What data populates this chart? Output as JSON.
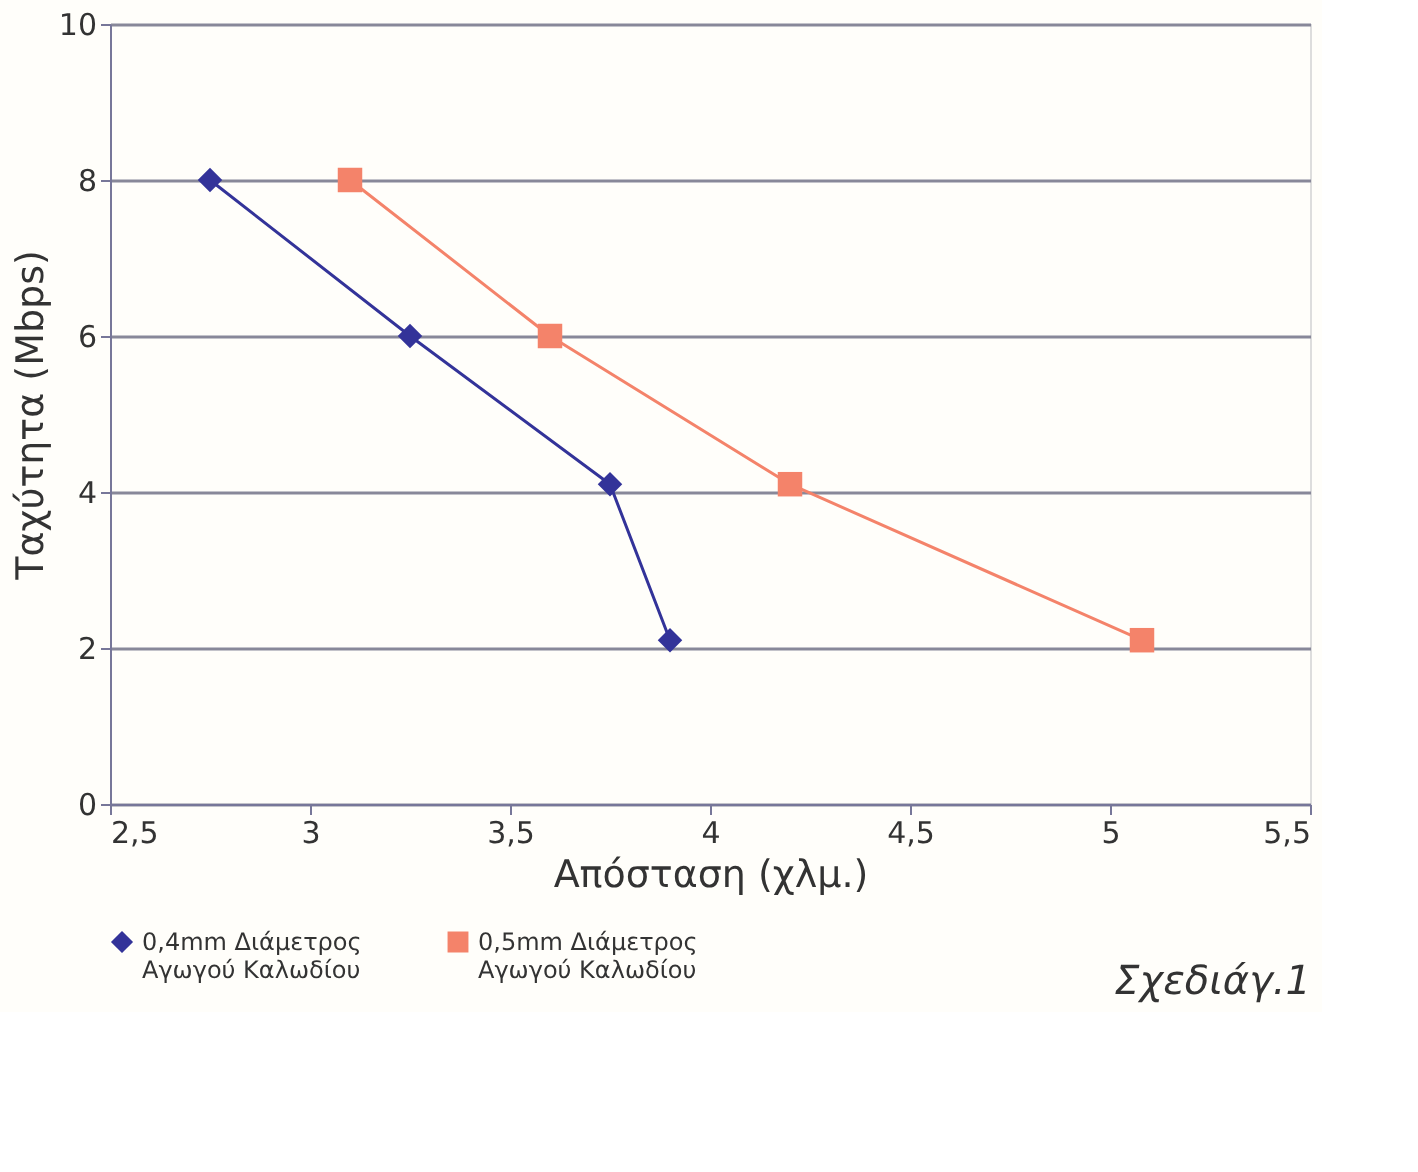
{
  "chart_data": {
    "type": "line",
    "xlabel": "Απόσταση (χλμ.)",
    "ylabel": "Ταχύτητα (Mbps)",
    "xlim": [
      2.5,
      5.5
    ],
    "xticks": [
      {
        "value": 2.5,
        "label": "2,5"
      },
      3,
      {
        "value": 3.5,
        "label": "3,5"
      },
      4,
      {
        "value": 4.5,
        "label": "4,5"
      },
      5,
      {
        "value": 5.5,
        "label": "5,5"
      }
    ],
    "ylim": [
      0,
      10
    ],
    "yticks": [
      0,
      2,
      4,
      6,
      8,
      10
    ],
    "grid": "y",
    "legend": "bottom",
    "series": [
      {
        "name": "0,4mm Διάμετρος\nΑγωγού Καλωδίου",
        "color": "#333399",
        "marker": "diamond",
        "x": [
          2.75,
          3.25,
          3.75,
          3.9
        ],
        "values": [
          8,
          6,
          4.1,
          2.1
        ]
      },
      {
        "name": "0,5mm Διάμετρος\nΑγωγού Καλωδίου",
        "color": "#f4836a",
        "marker": "square",
        "x": [
          3.1,
          3.6,
          4.2,
          5.08
        ],
        "values": [
          8,
          6,
          4.1,
          2.1
        ]
      }
    ],
    "annotations": [
      "Σχεδιάγ.1"
    ]
  }
}
